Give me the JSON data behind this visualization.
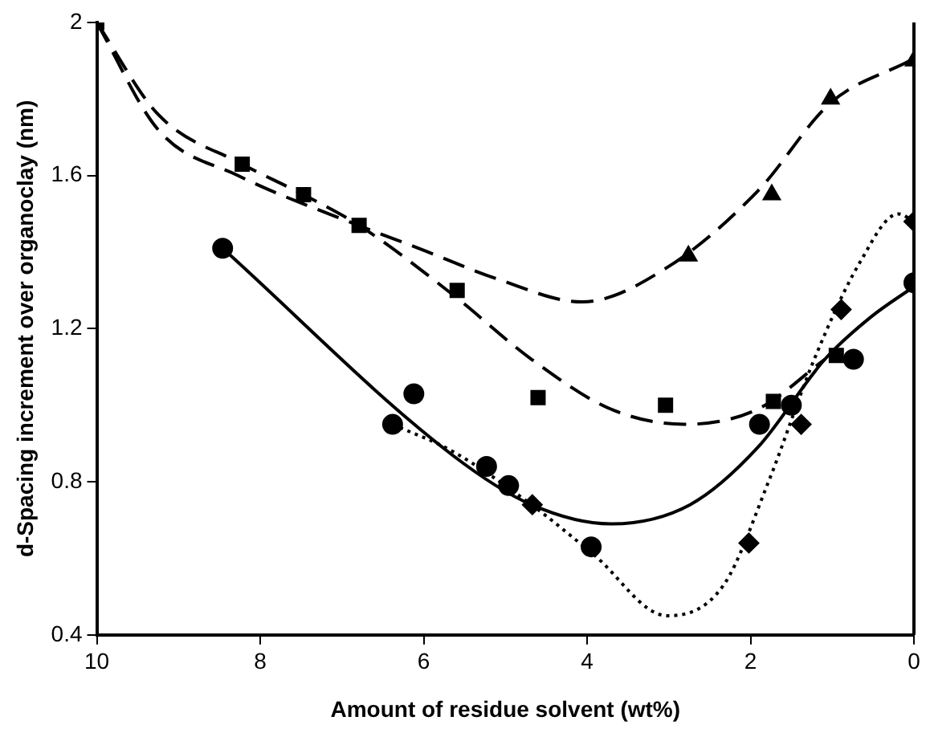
{
  "chart_data": {
    "type": "scatter",
    "xlabel": "Amount of residue solvent (wt%)",
    "ylabel": "d-Spacing increment over organoclay (nm)",
    "xlim": [
      10,
      0
    ],
    "xticks": [
      10,
      8,
      6,
      4,
      2,
      0
    ],
    "ylim": [
      0.4,
      2.0
    ],
    "yticks": [
      0.4,
      0.8,
      1.2,
      1.6,
      2
    ],
    "grid": false,
    "legend": false,
    "series": [
      {
        "marker": "triangle",
        "color": "#000000",
        "x": [
          2.76,
          1.74,
          1.02,
          0
        ],
        "values": [
          1.39,
          1.55,
          1.8,
          1.9
        ]
      },
      {
        "marker": "square",
        "color": "#000000",
        "x": [
          10,
          8.22,
          7.47,
          6.79,
          5.59,
          4.6,
          3.04,
          1.72,
          0.95
        ],
        "values": [
          2.0,
          1.63,
          1.55,
          1.47,
          1.3,
          1.02,
          1.0,
          1.01,
          1.13
        ]
      },
      {
        "marker": "circle",
        "color": "#000000",
        "x": [
          8.46,
          6.38,
          6.12,
          5.23,
          4.96,
          3.95,
          1.89,
          1.5,
          0.74,
          0
        ],
        "values": [
          1.41,
          0.95,
          1.03,
          0.84,
          0.79,
          0.63,
          0.95,
          1.0,
          1.12,
          1.32
        ]
      },
      {
        "marker": "diamond",
        "color": "#000000",
        "x": [
          4.67,
          2.02,
          1.38,
          0.89,
          0
        ],
        "values": [
          0.74,
          0.64,
          0.95,
          1.25,
          1.48
        ]
      },
      {
        "type": "line",
        "line_style": "dashed",
        "color": "#000000",
        "x": [
          10,
          9.25,
          8.27,
          6.8,
          6.06,
          5.1,
          4.06,
          3.02,
          1.91,
          1.02,
          0.05
        ],
        "values": [
          2.0,
          1.72,
          1.6,
          1.47,
          1.41,
          1.33,
          1.27,
          1.36,
          1.56,
          1.79,
          1.9
        ]
      },
      {
        "type": "line",
        "line_style": "dashed",
        "color": "#000000",
        "x": [
          10,
          9.25,
          8.22,
          7.47,
          6.79,
          5.65,
          4.68,
          3.71,
          2.81,
          1.91,
          1.09
        ],
        "values": [
          2.0,
          1.76,
          1.63,
          1.55,
          1.47,
          1.29,
          1.12,
          0.99,
          0.95,
          0.99,
          1.12
        ]
      },
      {
        "type": "line",
        "line_style": "solid",
        "color": "#000000",
        "x": [
          8.46,
          5.65,
          4.68,
          3.71,
          2.74,
          1.91,
          1.09,
          0.53,
          0
        ],
        "values": [
          1.41,
          0.87,
          0.74,
          0.69,
          0.74,
          0.89,
          1.12,
          1.23,
          1.31
        ]
      },
      {
        "type": "line",
        "line_style": "dotted",
        "color": "#000000",
        "x": [
          6.38,
          5.65,
          4.68,
          3.92,
          3.02,
          2.33,
          1.78,
          1.22,
          0.67,
          0.19,
          0
        ],
        "values": [
          0.95,
          0.88,
          0.74,
          0.61,
          0.45,
          0.53,
          0.8,
          1.12,
          1.37,
          1.5,
          1.48
        ]
      }
    ]
  }
}
